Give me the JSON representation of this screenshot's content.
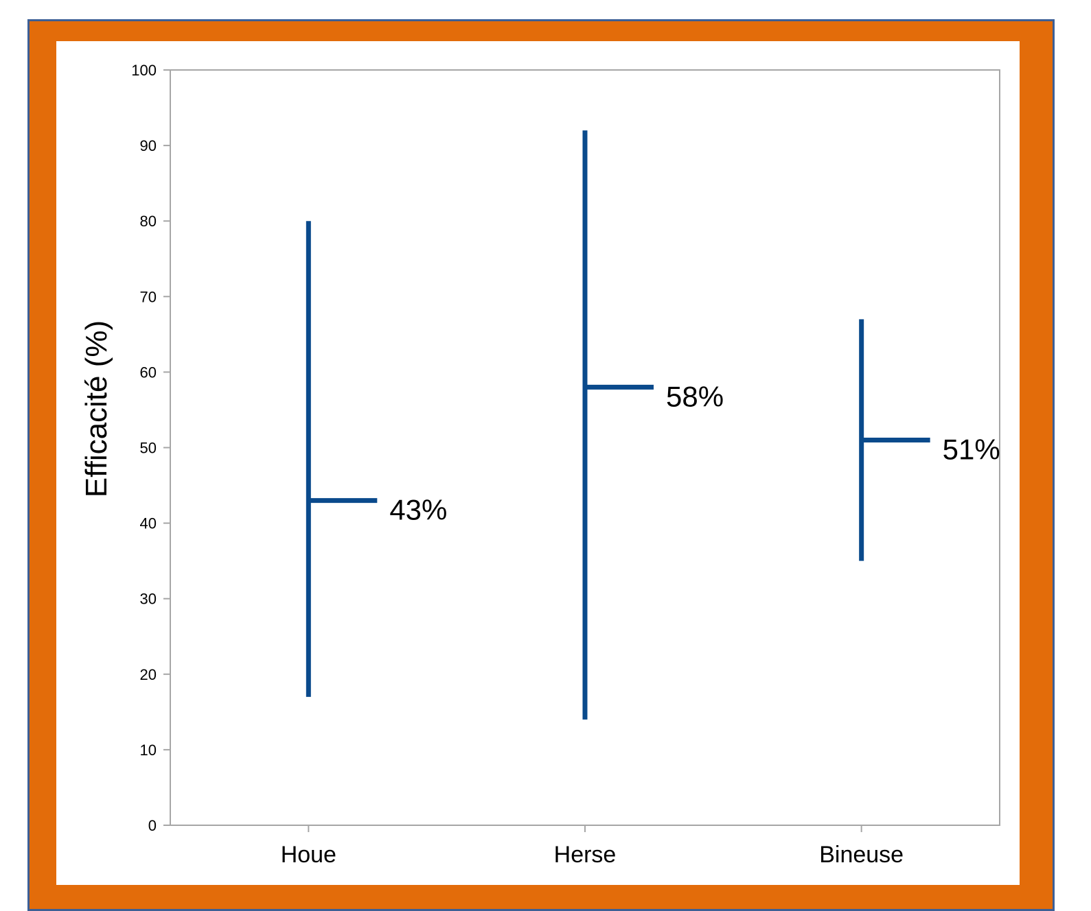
{
  "chart_data": {
    "type": "range",
    "title": "",
    "xlabel": "",
    "ylabel": "Efficacité (%)",
    "ylim": [
      0,
      100
    ],
    "yticks": [
      0,
      10,
      20,
      30,
      40,
      50,
      60,
      70,
      80,
      90,
      100
    ],
    "grid": false,
    "categories": [
      "Houe",
      "Herse",
      "Bineuse"
    ],
    "series": [
      {
        "low": [
          17,
          14,
          35
        ],
        "high": [
          80,
          92,
          67
        ],
        "mean": [
          43,
          58,
          51
        ],
        "labels": [
          "43%",
          "58%",
          "51%"
        ],
        "color": "#0a4a8c"
      }
    ]
  },
  "colors": {
    "frame_fill": "#e36c0a",
    "frame_border": "#3c5f96",
    "plot_axis": "#a6a6a6",
    "series": "#0a4a8c"
  }
}
